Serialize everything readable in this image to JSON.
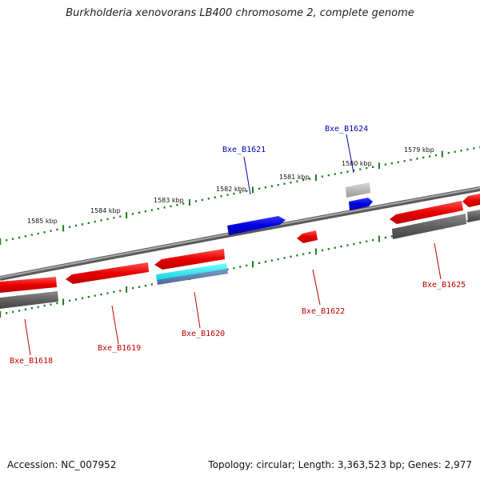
{
  "title": "Burkholderia xenovorans LB400 chromosome 2, complete genome",
  "footer": {
    "accession": "Accession: NC_007952",
    "summary": "Topology: circular; Length: 3,363,523 bp; Genes: 2,977"
  },
  "colors": {
    "backbone": "#8a8a8a",
    "tick_green": "#1e7d1e",
    "gene_red": "#e80000",
    "gene_blue": "#0000e0",
    "gene_cyan": "#10e0e8",
    "gene_steel": "#5a7aa8",
    "gene_gray": "#666666",
    "gene_lightgray": "#b8b8b8",
    "label_red": "#c00000",
    "label_blue": "#0000b0"
  },
  "ruler": {
    "labels": [
      "1585 kbp",
      "1584 kbp",
      "1583 kbp",
      "1582 kbp",
      "1581 kbp",
      "1580 kbp",
      "1579 kbp"
    ]
  },
  "genes": [
    {
      "id": "Bxe_B1618",
      "strand": "minus",
      "color": "red"
    },
    {
      "id": "Bxe_B1619",
      "strand": "minus",
      "color": "red"
    },
    {
      "id": "Bxe_B1620",
      "strand": "minus",
      "color": "red"
    },
    {
      "id": "Bxe_B1621",
      "strand": "plus",
      "color": "blue"
    },
    {
      "id": "Bxe_B1622",
      "strand": "minus",
      "color": "red"
    },
    {
      "id": "Bxe_B1624",
      "strand": "plus",
      "color": "blue"
    },
    {
      "id": "Bxe_B1625",
      "strand": "minus",
      "color": "red"
    }
  ]
}
